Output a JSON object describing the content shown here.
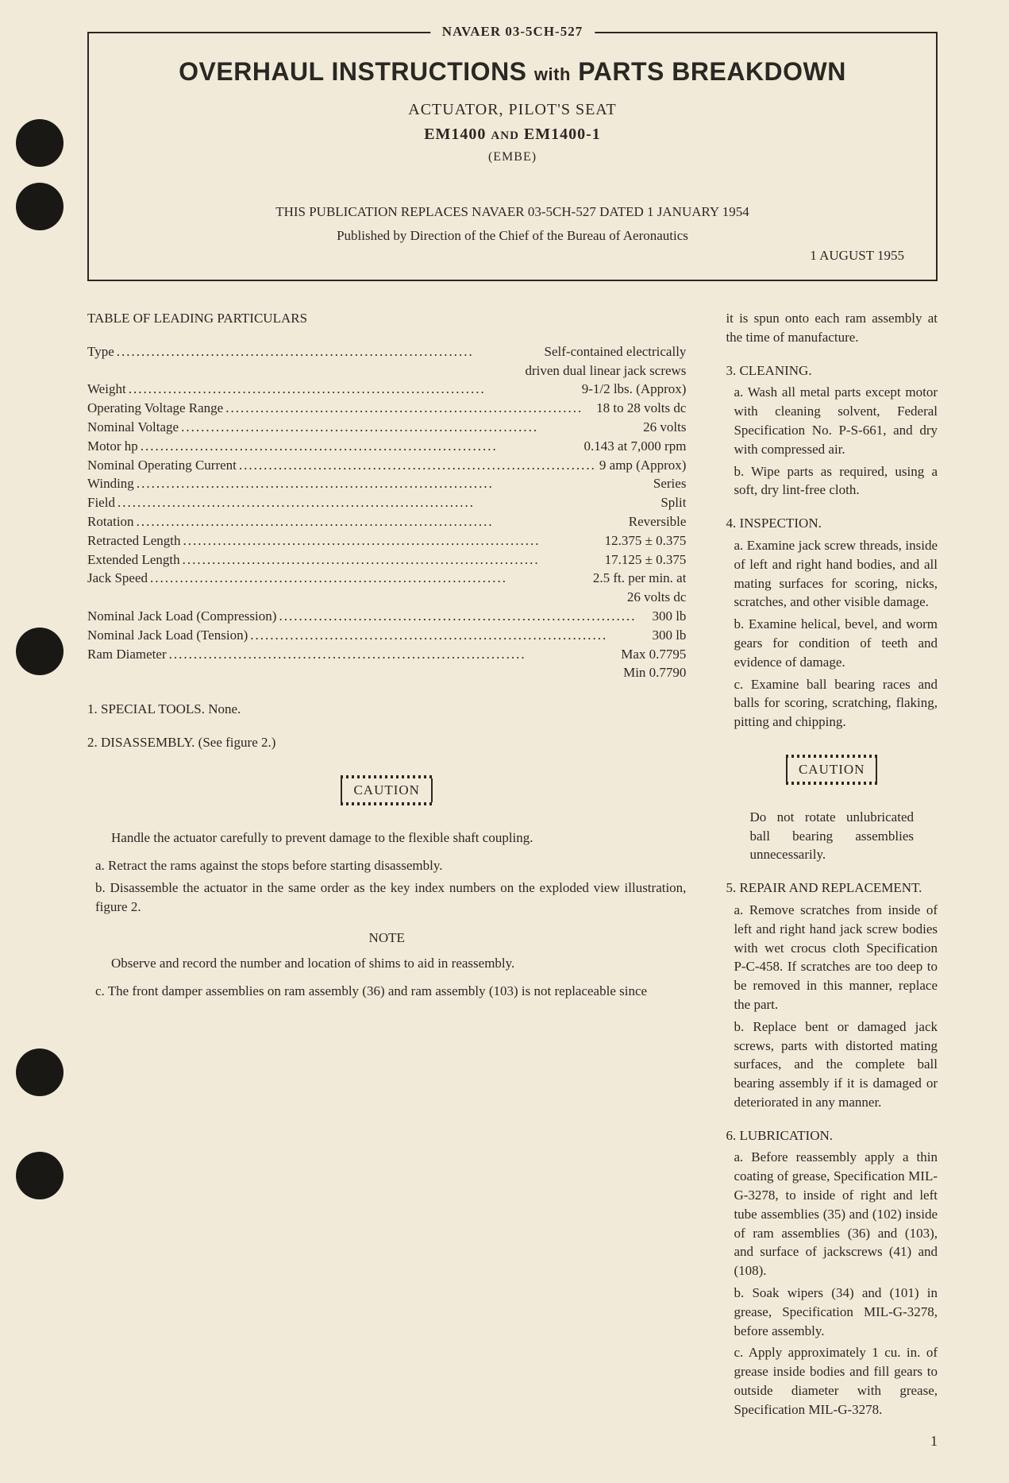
{
  "background_color": "#f2ead9",
  "text_color": "#2a2822",
  "doc_number": "NAVAER 03-5CH-527",
  "main_title_1": "OVERHAUL INSTRUCTIONS",
  "main_title_with": "with",
  "main_title_2": "PARTS BREAKDOWN",
  "subtitle1": "ACTUATOR, PILOT'S SEAT",
  "subtitle2a": "EM1400",
  "subtitle2and": "AND",
  "subtitle2b": "EM1400-1",
  "subtitle3": "(EMBE)",
  "replace_line": "THIS PUBLICATION REPLACES NAVAER 03-5CH-527 DATED 1 JANUARY 1954",
  "pub_line": "Published by Direction of the Chief of the Bureau of Aeronautics",
  "date": "1 AUGUST 1955",
  "table_title": "TABLE OF LEADING PARTICULARS",
  "particulars": [
    {
      "label": "Type",
      "value": "Self-contained electrically"
    },
    {
      "cont": "driven dual linear jack screws"
    },
    {
      "label": "Weight",
      "value": "9-1/2 lbs. (Approx)"
    },
    {
      "label": "Operating Voltage Range",
      "value": "18 to 28 volts dc"
    },
    {
      "label": "Nominal Voltage",
      "value": "26 volts"
    },
    {
      "label": "Motor hp",
      "value": "0.143 at 7,000 rpm"
    },
    {
      "label": "Nominal Operating Current",
      "value": "9 amp (Approx)"
    },
    {
      "label": "Winding",
      "value": "Series"
    },
    {
      "label": "Field",
      "value": "Split"
    },
    {
      "label": "Rotation",
      "value": "Reversible"
    },
    {
      "label": "Retracted Length",
      "value": "12.375 ± 0.375"
    },
    {
      "label": "Extended Length",
      "value": "17.125 ± 0.375"
    },
    {
      "label": "Jack Speed",
      "value": "2.5 ft. per min. at"
    },
    {
      "cont": "26 volts dc"
    },
    {
      "label": "Nominal Jack Load (Compression)",
      "value": "300 lb"
    },
    {
      "label": "Nominal Jack Load (Tension)",
      "value": "300 lb"
    },
    {
      "label": "Ram Diameter",
      "value": "Max 0.7795"
    },
    {
      "cont": "Min 0.7790"
    }
  ],
  "sec1": "1. SPECIAL TOOLS. None.",
  "sec2": "2. DISASSEMBLY. (See figure 2.)",
  "caution": "CAUTION",
  "caution1_text": "Handle the actuator carefully to prevent damage to the flexible shaft coupling.",
  "sec2a": "a. Retract the rams against the stops before starting disassembly.",
  "sec2b": "b. Disassemble the actuator in the same order as the key index numbers on the exploded view illustration, figure 2.",
  "note": "NOTE",
  "note1_text": "Observe and record the number and location of shims to aid in reassembly.",
  "sec2c": "c. The front damper assemblies on ram assembly (36) and ram assembly (103) is not replaceable since",
  "sec2c_cont": "it is spun onto each ram assembly at the time of manufacture.",
  "sec3": "3. CLEANING.",
  "sec3a": "a. Wash all metal parts except motor with cleaning solvent, Federal Specification No. P-S-661, and dry with compressed air.",
  "sec3b": "b. Wipe parts as required, using a soft, dry lint-free cloth.",
  "sec4": "4. INSPECTION.",
  "sec4a": "a. Examine jack screw threads, inside of left and right hand bodies, and all mating surfaces for scoring, nicks, scratches, and other visible damage.",
  "sec4b": "b. Examine helical, bevel, and worm gears for condition of teeth and evidence of damage.",
  "sec4c": "c. Examine ball bearing races and balls for scoring, scratching, flaking, pitting and chipping.",
  "caution2_text": "Do not rotate unlubricated ball bearing assemblies unnecessarily.",
  "sec5": "5. REPAIR AND REPLACEMENT.",
  "sec5a": "a. Remove scratches from inside of left and right hand jack screw bodies with wet crocus cloth Specification P-C-458. If scratches are too deep to be removed in this manner, replace the part.",
  "sec5b": "b. Replace bent or damaged jack screws, parts with distorted mating surfaces, and the complete ball bearing assembly if it is damaged or deteriorated in any manner.",
  "sec6": "6. LUBRICATION.",
  "sec6a": "a. Before reassembly apply a thin coating of grease, Specification MIL-G-3278, to inside of right and left tube assemblies (35) and (102) inside of ram assemblies (36) and (103), and surface of jackscrews (41) and (108).",
  "sec6b": "b. Soak wipers (34) and (101) in grease, Specification MIL-G-3278, before assembly.",
  "sec6c": "c. Apply approximately 1 cu. in. of grease inside bodies and fill gears to outside diameter with grease, Specification MIL-G-3278.",
  "page_num": "1"
}
